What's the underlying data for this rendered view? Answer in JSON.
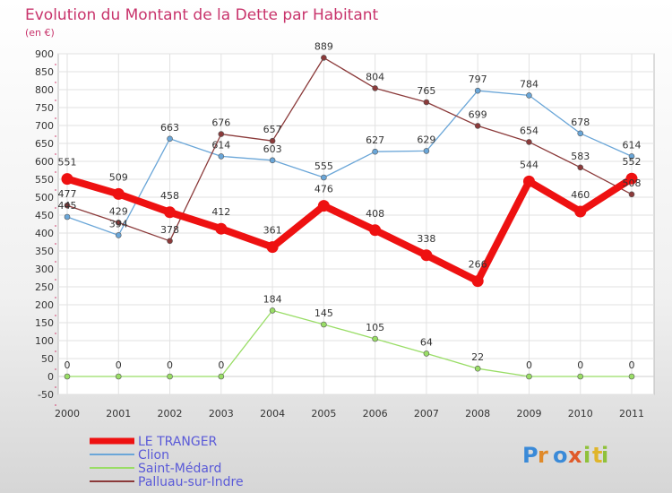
{
  "chart_data": {
    "type": "line",
    "title": "Evolution du Montant de la Dette par Habitant",
    "subtitle": "(en €)",
    "xlabel": "",
    "ylabel": "",
    "x": [
      "2000",
      "2001",
      "2002",
      "2003",
      "2004",
      "2005",
      "2006",
      "2007",
      "2008",
      "2009",
      "2010",
      "2011"
    ],
    "ylim": [
      -50,
      900
    ],
    "yticks": [
      -50,
      0,
      50,
      100,
      150,
      200,
      250,
      300,
      350,
      400,
      450,
      500,
      550,
      600,
      650,
      700,
      750,
      800,
      850,
      900
    ],
    "grid": true,
    "legend_position": "bottom-left",
    "series": [
      {
        "name": "LE TRANGER",
        "color": "#ee1111",
        "values": [
          551,
          509,
          458,
          412,
          361,
          476,
          408,
          338,
          266,
          544,
          460,
          552
        ]
      },
      {
        "name": "Clion",
        "color": "#6aa6d8",
        "values": [
          445,
          394,
          663,
          614,
          603,
          555,
          627,
          629,
          797,
          784,
          678,
          614
        ]
      },
      {
        "name": "Saint-Médard",
        "color": "#99dd66",
        "values": [
          0,
          0,
          0,
          0,
          184,
          145,
          105,
          64,
          22,
          0,
          0,
          0
        ]
      },
      {
        "name": "Palluau-sur-Indre",
        "color": "#8b3a3a",
        "values": [
          477,
          429,
          378,
          676,
          657,
          889,
          804,
          765,
          699,
          654,
          583,
          508
        ]
      }
    ]
  },
  "logo": {
    "text": "Proxiti"
  }
}
